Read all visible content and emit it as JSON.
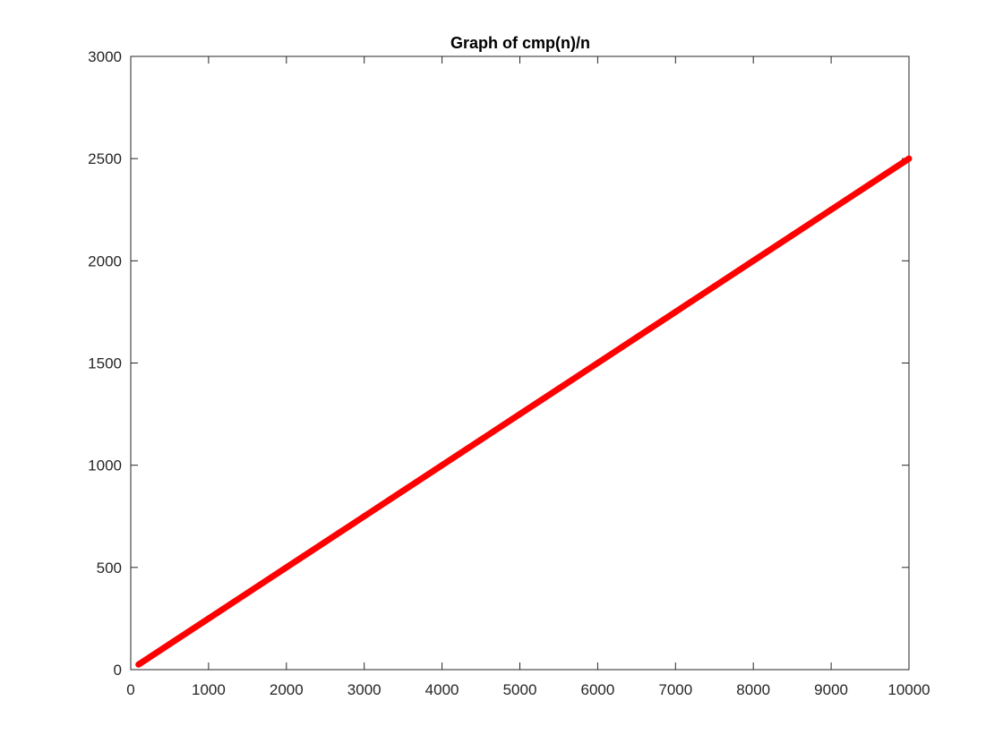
{
  "chart_data": {
    "type": "line",
    "title": "Graph of cmp(n)/n",
    "xlabel": "",
    "ylabel": "",
    "xlim": [
      0,
      10000
    ],
    "ylim": [
      0,
      3000
    ],
    "x_ticks": [
      0,
      1000,
      2000,
      3000,
      4000,
      5000,
      6000,
      7000,
      8000,
      9000,
      10000
    ],
    "y_ticks": [
      0,
      500,
      1000,
      1500,
      2000,
      2500,
      3000
    ],
    "x_tick_labels": [
      "0",
      "1000",
      "2000",
      "3000",
      "4000",
      "5000",
      "6000",
      "7000",
      "8000",
      "9000",
      "10000"
    ],
    "y_tick_labels": [
      "0",
      "500",
      "1000",
      "1500",
      "2000",
      "2500",
      "3000"
    ],
    "grid": false,
    "legend": "none",
    "series": [
      {
        "color": "#ff0000",
        "x": [
          100,
          500,
          1000,
          1500,
          2000,
          2500,
          3000,
          3500,
          4000,
          4500,
          5000,
          5500,
          6000,
          6500,
          7000,
          7500,
          8000,
          8500,
          9000,
          9500,
          10000
        ],
        "y": [
          25,
          125,
          250,
          375,
          500,
          625,
          750,
          875,
          1000,
          1125,
          1250,
          1375,
          1500,
          1625,
          1750,
          1875,
          2000,
          2125,
          2250,
          2375,
          2500
        ]
      }
    ]
  }
}
